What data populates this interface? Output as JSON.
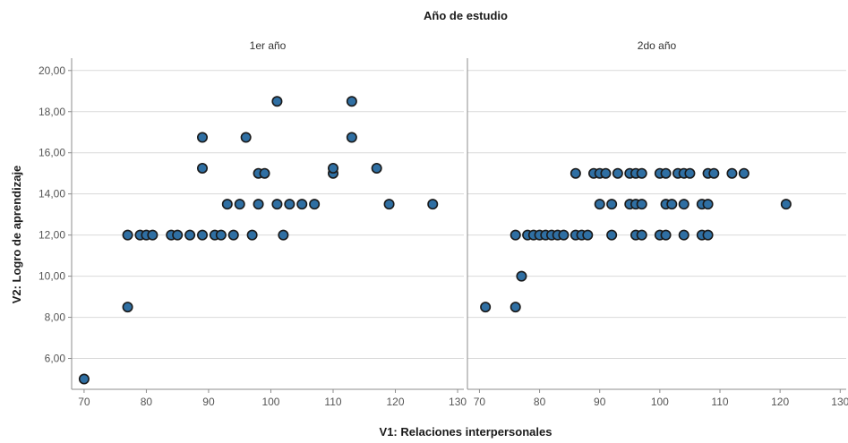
{
  "chart_data": {
    "type": "scatter",
    "title": "Año de estudio",
    "xlabel": "V1: Relaciones interpersonales",
    "ylabel": "V2: Logro de aprendizaje",
    "xlim": [
      68,
      131
    ],
    "ylim": [
      4.5,
      20.6
    ],
    "x_ticks": [
      "70",
      "80",
      "90",
      "100",
      "110",
      "120",
      "130"
    ],
    "y_ticks": [
      "6,00",
      "8,00",
      "10,00",
      "12,00",
      "14,00",
      "16,00",
      "18,00",
      "20,00"
    ],
    "grid": "horizontal",
    "marker_color": "#2f6fa3",
    "marker_edge": "#1a1a1a",
    "panels": [
      {
        "label": "1er año",
        "points": [
          [
            70,
            5.0
          ],
          [
            77,
            8.5
          ],
          [
            77,
            12
          ],
          [
            79,
            12
          ],
          [
            80,
            12
          ],
          [
            81,
            12
          ],
          [
            84,
            12
          ],
          [
            85,
            12
          ],
          [
            87,
            12
          ],
          [
            89,
            12
          ],
          [
            91,
            12
          ],
          [
            92,
            12
          ],
          [
            94,
            12
          ],
          [
            97,
            12
          ],
          [
            102,
            12
          ],
          [
            93,
            13.5
          ],
          [
            95,
            13.5
          ],
          [
            98,
            13.5
          ],
          [
            101,
            13.5
          ],
          [
            103,
            13.5
          ],
          [
            105,
            13.5
          ],
          [
            107,
            13.5
          ],
          [
            119,
            13.5
          ],
          [
            126,
            13.5
          ],
          [
            98,
            15
          ],
          [
            99,
            15
          ],
          [
            110,
            15
          ],
          [
            110,
            15.25
          ],
          [
            89,
            15.25
          ],
          [
            117,
            15.25
          ],
          [
            89,
            16.75
          ],
          [
            96,
            16.75
          ],
          [
            113,
            16.75
          ],
          [
            101,
            18.5
          ],
          [
            113,
            18.5
          ]
        ]
      },
      {
        "label": "2do año",
        "points": [
          [
            71,
            8.5
          ],
          [
            76,
            8.5
          ],
          [
            77,
            10
          ],
          [
            76,
            12
          ],
          [
            78,
            12
          ],
          [
            79,
            12
          ],
          [
            80,
            12
          ],
          [
            81,
            12
          ],
          [
            82,
            12
          ],
          [
            83,
            12
          ],
          [
            84,
            12
          ],
          [
            86,
            12
          ],
          [
            87,
            12
          ],
          [
            88,
            12
          ],
          [
            92,
            12
          ],
          [
            96,
            12
          ],
          [
            97,
            12
          ],
          [
            100,
            12
          ],
          [
            101,
            12
          ],
          [
            104,
            12
          ],
          [
            107,
            12
          ],
          [
            108,
            12
          ],
          [
            90,
            13.5
          ],
          [
            92,
            13.5
          ],
          [
            95,
            13.5
          ],
          [
            96,
            13.5
          ],
          [
            97,
            13.5
          ],
          [
            101,
            13.5
          ],
          [
            102,
            13.5
          ],
          [
            104,
            13.5
          ],
          [
            107,
            13.5
          ],
          [
            108,
            13.5
          ],
          [
            121,
            13.5
          ],
          [
            86,
            15
          ],
          [
            89,
            15
          ],
          [
            90,
            15
          ],
          [
            91,
            15
          ],
          [
            93,
            15
          ],
          [
            95,
            15
          ],
          [
            96,
            15
          ],
          [
            97,
            15
          ],
          [
            100,
            15
          ],
          [
            101,
            15
          ],
          [
            103,
            15
          ],
          [
            104,
            15
          ],
          [
            105,
            15
          ],
          [
            108,
            15
          ],
          [
            109,
            15
          ],
          [
            112,
            15
          ],
          [
            114,
            15
          ]
        ]
      }
    ]
  }
}
